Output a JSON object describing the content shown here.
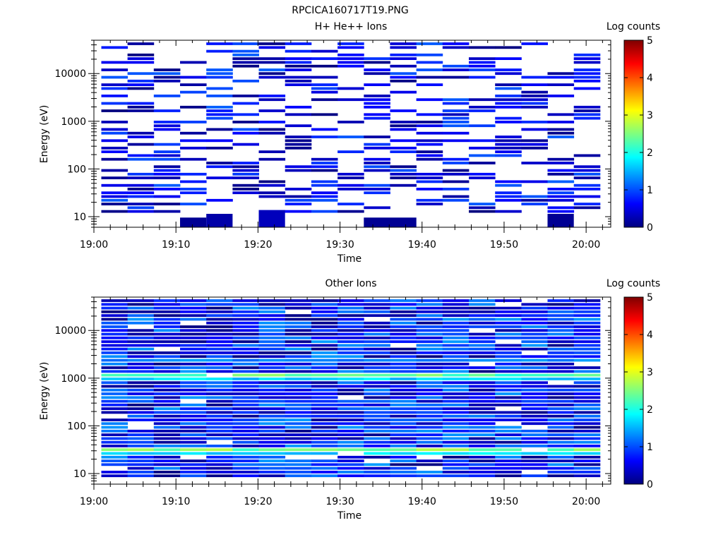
{
  "figure": {
    "title": "RPCICA160717T19.PNG"
  },
  "colorbar": {
    "label": "Log counts",
    "ticks": [
      "0",
      "1",
      "2",
      "3",
      "4",
      "5"
    ],
    "range": [
      0,
      5
    ],
    "colormap": [
      "#00007f",
      "#0000ff",
      "#007fff",
      "#00ffff",
      "#7fff7f",
      "#ffff00",
      "#ff7f00",
      "#ff0000",
      "#7f0000"
    ]
  },
  "chart_data": [
    {
      "type": "heatmap",
      "title": "H+ He++ Ions",
      "xlabel": "Time",
      "ylabel": "Energy (eV)",
      "xticks": [
        "19:00",
        "19:10",
        "19:20",
        "19:30",
        "19:40",
        "19:50",
        "20:00"
      ],
      "yticks": [
        "10",
        "100",
        "1000",
        "10000"
      ],
      "xlim": [
        "19:00",
        "20:03"
      ],
      "ylim": [
        6,
        50000
      ],
      "yscale": "log",
      "time_bins": 19,
      "time_step_min": 3.2,
      "energy_bins": 48,
      "zlim": [
        0,
        5
      ],
      "description_level": "sparse",
      "sparsity": 0.52,
      "max_level": 1.1,
      "seed": 7,
      "bright_rows": [
        [
          1150,
          0.9
        ],
        [
          2500,
          0.9
        ]
      ],
      "empty_floor_bins": [
        0,
        1
      ],
      "low_energy_blocks": [
        {
          "t": [
            3,
            4
          ],
          "e": [
            0,
            1
          ],
          "v": 0.1
        },
        {
          "t": [
            4,
            5
          ],
          "e": [
            1,
            2
          ],
          "v": 0.2
        },
        {
          "t": [
            6,
            7
          ],
          "e": [
            2,
            3
          ],
          "v": 0.3
        },
        {
          "t": [
            10,
            12
          ],
          "e": [
            0,
            1
          ],
          "v": 0.1
        },
        {
          "t": [
            17,
            18
          ],
          "e": [
            0,
            2
          ],
          "v": 0.1
        }
      ]
    },
    {
      "type": "heatmap",
      "title": "Other Ions",
      "xlabel": "Time",
      "ylabel": "Energy (eV)",
      "xticks": [
        "19:00",
        "19:10",
        "19:20",
        "19:30",
        "19:40",
        "19:50",
        "20:00"
      ],
      "yticks": [
        "10",
        "100",
        "1000",
        "10000"
      ],
      "xlim": [
        "19:00",
        "20:03"
      ],
      "ylim": [
        6,
        50000
      ],
      "yscale": "log",
      "time_bins": 19,
      "time_step_min": 3.2,
      "energy_bins": 48,
      "zlim": [
        0,
        5
      ],
      "description_level": "dense",
      "sparsity": 0.09,
      "max_level": 1.4,
      "seed": 19,
      "bright_rows": [
        [
          1150,
          2.6
        ],
        [
          1000,
          1.9
        ],
        [
          2500,
          1.5
        ],
        [
          33,
          2.8
        ],
        [
          28,
          1.9
        ]
      ],
      "empty_floor_bins": [],
      "low_energy_blocks": []
    }
  ]
}
